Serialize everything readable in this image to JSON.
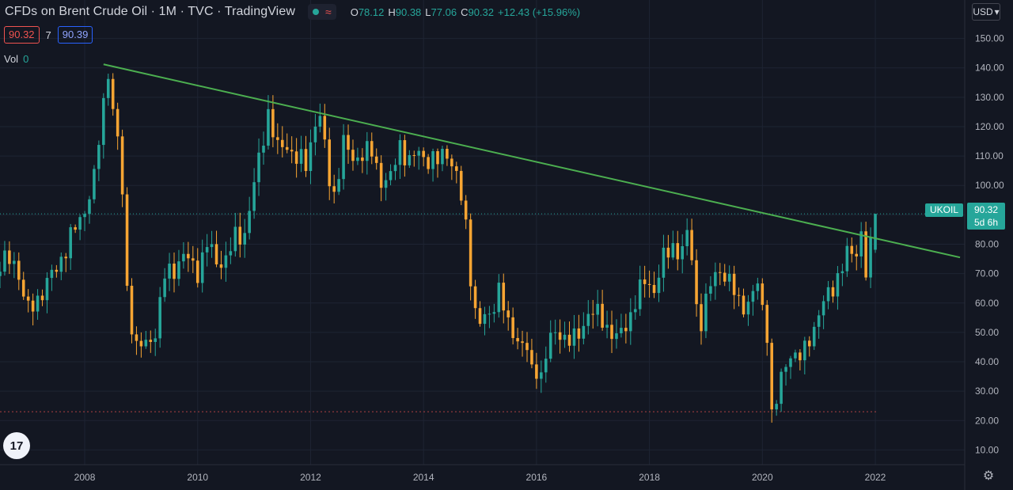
{
  "header": {
    "title": "CFDs on Brent Crude Oil · 1M · TVC · TradingView",
    "icon_dot": "status-dot-icon",
    "icon_wave": "≈",
    "ohlc": {
      "o_label": "O",
      "o": "78.12",
      "h_label": "H",
      "h": "90.38",
      "l_label": "L",
      "l": "77.06",
      "c_label": "C",
      "c": "90.32",
      "change": "+12.43 (+15.96%)"
    }
  },
  "order_boxes": {
    "sell": "90.32",
    "spread": "7",
    "buy": "90.39"
  },
  "volume": {
    "label": "Vol",
    "value": "0"
  },
  "currency_button": {
    "label": "USD",
    "icon": "chevron-down-icon"
  },
  "logo": {
    "text": "17"
  },
  "settings_icon": "gear-icon",
  "price_label": {
    "symbol": "UKOIL",
    "price": "90.32",
    "countdown": "5d 6h"
  },
  "colors": {
    "background": "#131722",
    "up": "#26a69a",
    "down": "#f7a533",
    "trendline": "#4caf50",
    "grid": "#1e2433"
  },
  "chart_data": {
    "type": "candlestick",
    "x_ticks": [
      "2008",
      "2010",
      "2012",
      "2014",
      "2016",
      "2018",
      "2020",
      "2022"
    ],
    "y_ticks": [
      "10.00",
      "20.00",
      "30.00",
      "40.00",
      "50.00",
      "60.00",
      "70.00",
      "80.00",
      "90.00",
      "100.00",
      "110.00",
      "120.00",
      "130.00",
      "140.00",
      "150.00"
    ],
    "ylim": [
      5,
      155
    ],
    "xlim": [
      "2006-07",
      "2023-08"
    ],
    "last_price": 90.32,
    "trendline": [
      {
        "date": "2008-05",
        "price": 141.2
      },
      {
        "date": "2023-07",
        "price": 75.5
      }
    ],
    "horizontal_line": 23,
    "points": [
      [
        "2006-07",
        73
      ],
      [
        "2006-10",
        75
      ],
      [
        "2007-01",
        57
      ],
      [
        "2007-04",
        64
      ],
      [
        "2007-07",
        72
      ],
      [
        "2007-10",
        82
      ],
      [
        "2008-01",
        92
      ],
      [
        "2008-03",
        102
      ],
      [
        "2008-05",
        128
      ],
      [
        "2008-06",
        140
      ],
      [
        "2008-07",
        125
      ],
      [
        "2008-08",
        115
      ],
      [
        "2008-09",
        97
      ],
      [
        "2008-10",
        65
      ],
      [
        "2008-11",
        53
      ],
      [
        "2008-12",
        45
      ],
      [
        "2009-02",
        46
      ],
      [
        "2009-04",
        50
      ],
      [
        "2009-06",
        69
      ],
      [
        "2009-08",
        72
      ],
      [
        "2009-10",
        76
      ],
      [
        "2010-01",
        71
      ],
      [
        "2010-03",
        80
      ],
      [
        "2010-05",
        74
      ],
      [
        "2010-07",
        75
      ],
      [
        "2010-09",
        82
      ],
      [
        "2010-11",
        84
      ],
      [
        "2011-01",
        100
      ],
      [
        "2011-03",
        117
      ],
      [
        "2011-04",
        125
      ],
      [
        "2011-06",
        112
      ],
      [
        "2011-08",
        114
      ],
      [
        "2011-10",
        109
      ],
      [
        "2011-12",
        107
      ],
      [
        "2012-02",
        122
      ],
      [
        "2012-03",
        123
      ],
      [
        "2012-05",
        102
      ],
      [
        "2012-06",
        97
      ],
      [
        "2012-08",
        114
      ],
      [
        "2012-10",
        109
      ],
      [
        "2012-12",
        111
      ],
      [
        "2013-02",
        111
      ],
      [
        "2013-04",
        102
      ],
      [
        "2013-06",
        102
      ],
      [
        "2013-08",
        114
      ],
      [
        "2013-10",
        108
      ],
      [
        "2013-12",
        111
      ],
      [
        "2014-02",
        109
      ],
      [
        "2014-04",
        108
      ],
      [
        "2014-06",
        112
      ],
      [
        "2014-08",
        103
      ],
      [
        "2014-09",
        95
      ],
      [
        "2014-10",
        86
      ],
      [
        "2014-11",
        70
      ],
      [
        "2014-12",
        57
      ],
      [
        "2015-01",
        53
      ],
      [
        "2015-03",
        56
      ],
      [
        "2015-05",
        65
      ],
      [
        "2015-07",
        52
      ],
      [
        "2015-09",
        48
      ],
      [
        "2015-11",
        44
      ],
      [
        "2015-12",
        37
      ],
      [
        "2016-02",
        36
      ],
      [
        "2016-04",
        48
      ],
      [
        "2016-06",
        50
      ],
      [
        "2016-08",
        47
      ],
      [
        "2016-10",
        49
      ],
      [
        "2016-12",
        57
      ],
      [
        "2017-02",
        56
      ],
      [
        "2017-04",
        52
      ],
      [
        "2017-06",
        48
      ],
      [
        "2017-08",
        52
      ],
      [
        "2017-10",
        61
      ],
      [
        "2017-12",
        67
      ],
      [
        "2018-02",
        65
      ],
      [
        "2018-04",
        75
      ],
      [
        "2018-06",
        79
      ],
      [
        "2018-08",
        78
      ],
      [
        "2018-09",
        83
      ],
      [
        "2018-10",
        75
      ],
      [
        "2018-11",
        59
      ],
      [
        "2018-12",
        54
      ],
      [
        "2019-02",
        66
      ],
      [
        "2019-04",
        72
      ],
      [
        "2019-06",
        67
      ],
      [
        "2019-08",
        60
      ],
      [
        "2019-10",
        60
      ],
      [
        "2019-12",
        66
      ],
      [
        "2020-01",
        58
      ],
      [
        "2020-02",
        50
      ],
      [
        "2020-03",
        23
      ],
      [
        "2020-04",
        26
      ],
      [
        "2020-05",
        35
      ],
      [
        "2020-07",
        43
      ],
      [
        "2020-09",
        41
      ],
      [
        "2020-11",
        48
      ],
      [
        "2021-01",
        56
      ],
      [
        "2021-03",
        63
      ],
      [
        "2021-05",
        69
      ],
      [
        "2021-07",
        76
      ],
      [
        "2021-09",
        78
      ],
      [
        "2021-10",
        84
      ],
      [
        "2021-11",
        70
      ],
      [
        "2021-12",
        78
      ],
      [
        "2022-01",
        90.32
      ]
    ]
  }
}
